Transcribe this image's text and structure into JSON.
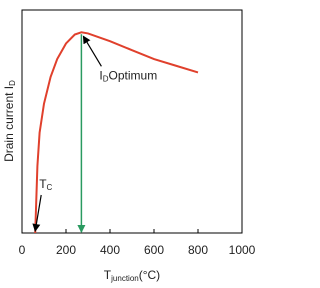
{
  "chart_data": {
    "type": "line",
    "y_label": {
      "text": "Drain current I",
      "sub": "D"
    },
    "x_label": {
      "text": "T",
      "sub": "junction",
      "rest": "(°C)"
    },
    "x": [
      60,
      70,
      80,
      100,
      130,
      160,
      200,
      240,
      270,
      300,
      400,
      500,
      600,
      700,
      800
    ],
    "values": [
      0,
      30,
      45,
      58,
      70,
      78,
      85,
      89,
      90,
      89.5,
      86,
      82,
      78,
      75,
      72
    ],
    "color": "#e0402c",
    "xlim": [
      0,
      1000
    ],
    "xticks": [
      0,
      200,
      400,
      600,
      800,
      1000
    ],
    "ylim": [
      0,
      100
    ],
    "optimum": {
      "x": 270,
      "y": 90,
      "color": "#2a9a60",
      "label": {
        "text": "I",
        "sub": "D",
        "rest": "Optimum"
      }
    },
    "critical": {
      "x": 60,
      "y": 0,
      "label": {
        "text": "T",
        "sub": "C"
      }
    }
  }
}
